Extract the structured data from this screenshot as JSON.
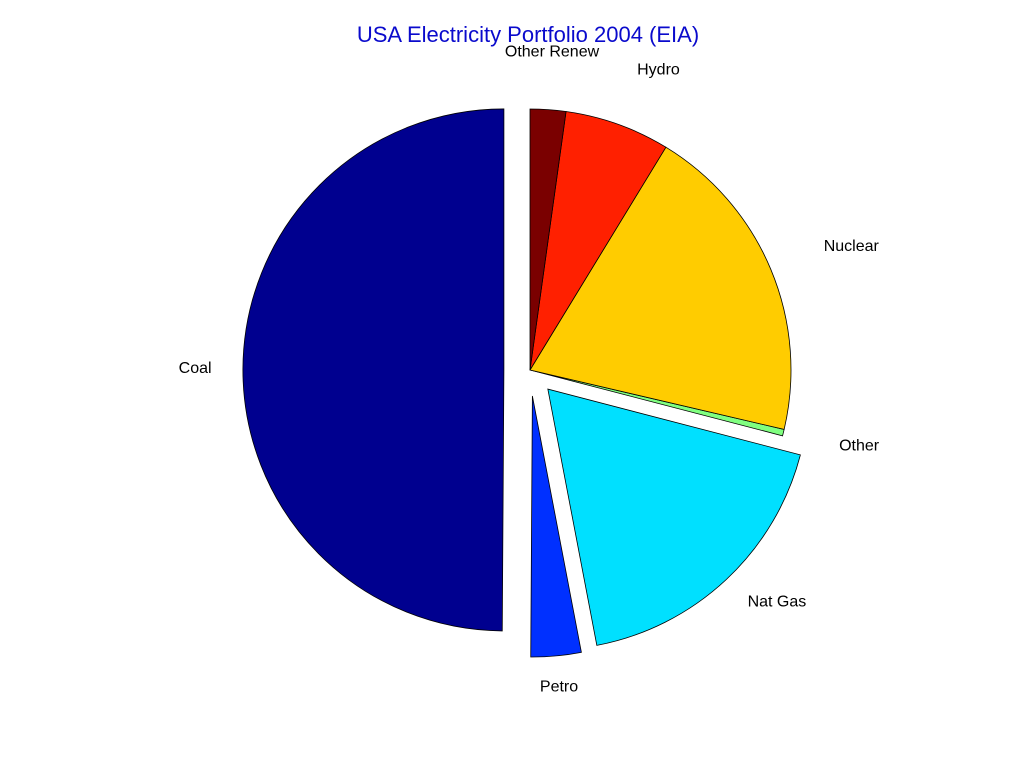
{
  "chart_data": {
    "type": "pie",
    "title": "USA Electricity Portfolio 2004 (EIA)",
    "categories": [
      "Coal",
      "Petro",
      "Nat Gas",
      "Other",
      "Nuclear",
      "Hydro",
      "Other Renew"
    ],
    "values": [
      49.8,
      3.1,
      17.9,
      0.4,
      19.9,
      6.5,
      2.2
    ],
    "colors": [
      "#00008f",
      "#0030ff",
      "#00e0ff",
      "#80ff80",
      "#ffcc00",
      "#ff2000",
      "#7a0000"
    ],
    "explode": [
      true,
      true,
      true,
      false,
      false,
      false,
      false
    ]
  }
}
